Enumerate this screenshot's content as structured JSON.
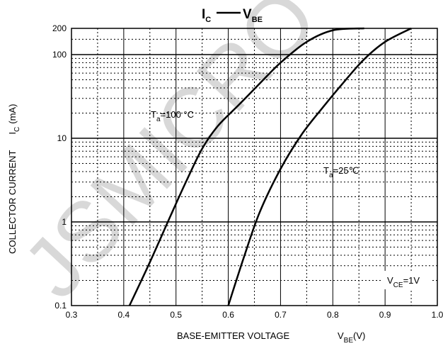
{
  "chart_data": {
    "type": "line",
    "title_main": "I",
    "title_main_sub": "C",
    "title_rel": "V",
    "title_rel_sub": "BE",
    "xlabel": "BASE-EMITTER VOLTAGE",
    "xlabel_var": "V",
    "xlabel_var_sub": "BE",
    "xlabel_unit": "(V)",
    "ylabel": "COLLECTOR CURRENT",
    "ylabel_var": "I",
    "ylabel_var_sub": "C",
    "ylabel_unit": "(mA)",
    "x_scale": "linear",
    "y_scale": "log",
    "xlim": [
      0.3,
      1.0
    ],
    "ylim": [
      0.1,
      200
    ],
    "x_ticks": [
      0.3,
      0.4,
      0.5,
      0.6,
      0.7,
      0.8,
      0.9,
      1.0
    ],
    "x_tick_labels": [
      "0.3",
      "0.4",
      "0.5",
      "0.6",
      "0.7",
      "0.8",
      "0.9",
      "1.0"
    ],
    "y_ticks": [
      0.1,
      1,
      10,
      100,
      200
    ],
    "y_tick_labels": [
      "0.1",
      "1",
      "10",
      "100",
      "200"
    ],
    "grid": true,
    "condition_label_var": "V",
    "condition_label_sub": "CE",
    "condition_label_value": "=1V",
    "watermark": "JSMICRO",
    "series": [
      {
        "label_var": "T",
        "label_sub": "a",
        "label_value": "=100 °C",
        "x": [
          0.411,
          0.45,
          0.49,
          0.52,
          0.55,
          0.58,
          0.62,
          0.66,
          0.7,
          0.75,
          0.8,
          0.86
        ],
        "y": [
          0.1,
          0.33,
          1.2,
          3.1,
          7.5,
          14,
          25,
          45,
          80,
          140,
          190,
          200
        ]
      },
      {
        "label_var": "T",
        "label_sub": "a",
        "label_value": "=25℃",
        "x": [
          0.6,
          0.63,
          0.66,
          0.7,
          0.74,
          0.78,
          0.82,
          0.86,
          0.9,
          0.95
        ],
        "y": [
          0.1,
          0.38,
          1.3,
          4.3,
          11,
          23,
          46,
          88,
          140,
          200
        ]
      }
    ]
  }
}
